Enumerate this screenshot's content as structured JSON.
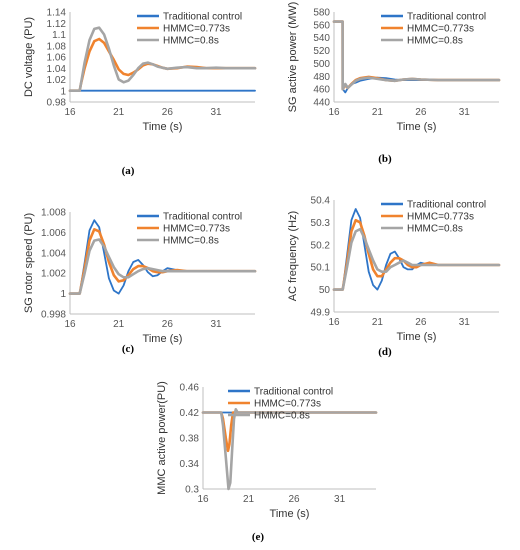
{
  "colors": {
    "blue": "#2E75C8",
    "orange": "#F0832E",
    "gray": "#A5A5A5"
  },
  "chart_data": [
    {
      "type": "line",
      "panel": "(a)",
      "xlabel": "Time (s)",
      "ylabel": "DC voltage (PU)",
      "xlim": [
        16,
        35
      ],
      "ylim": [
        0.98,
        1.14
      ],
      "xticks": [
        16,
        21,
        26,
        31
      ],
      "yticks": [
        0.98,
        1,
        1.02,
        1.04,
        1.06,
        1.08,
        1.1,
        1.12,
        1.14
      ],
      "yticklabels": [
        "0.98",
        "1",
        "1.02",
        "1.04",
        "1.06",
        "1.08",
        "1.1",
        "1.12",
        "1.14"
      ],
      "legend": "top-right",
      "series": [
        {
          "name": "Traditional control",
          "color": "blue",
          "x": [
            16,
            17,
            35
          ],
          "y": [
            1,
            1,
            1
          ]
        },
        {
          "name": "HMMC=0.773s",
          "color": "orange",
          "x": [
            16,
            17,
            17.1,
            17.5,
            18,
            18.5,
            19,
            19.5,
            20,
            20.5,
            21,
            21.5,
            22,
            22.5,
            23,
            23.5,
            24,
            24.5,
            25,
            25.5,
            26,
            27,
            28,
            29,
            30,
            31,
            32,
            33,
            34,
            35
          ],
          "y": [
            1,
            1,
            1.01,
            1.04,
            1.07,
            1.088,
            1.092,
            1.085,
            1.07,
            1.055,
            1.038,
            1.03,
            1.028,
            1.032,
            1.038,
            1.045,
            1.048,
            1.047,
            1.044,
            1.041,
            1.039,
            1.04,
            1.043,
            1.042,
            1.04,
            1.04,
            1.04,
            1.04,
            1.04,
            1.04
          ]
        },
        {
          "name": "HMMC=0.8s",
          "color": "gray",
          "x": [
            16,
            17,
            17.1,
            17.5,
            18,
            18.5,
            19,
            19.5,
            20,
            20.5,
            21,
            21.5,
            22,
            22.5,
            23,
            23.5,
            24,
            24.5,
            25,
            26,
            27,
            28,
            29,
            30,
            31,
            32,
            33,
            34,
            35
          ],
          "y": [
            1,
            1,
            1.01,
            1.05,
            1.09,
            1.11,
            1.112,
            1.1,
            1.075,
            1.045,
            1.02,
            1.015,
            1.018,
            1.028,
            1.04,
            1.048,
            1.05,
            1.047,
            1.043,
            1.039,
            1.041,
            1.042,
            1.04,
            1.04,
            1.041,
            1.04,
            1.04,
            1.04,
            1.04
          ]
        }
      ]
    },
    {
      "type": "line",
      "panel": "(b)",
      "xlabel": "Time (s)",
      "ylabel": "SG active power (MW)",
      "xlim": [
        16,
        35
      ],
      "ylim": [
        440,
        580
      ],
      "xticks": [
        16,
        21,
        26,
        31
      ],
      "yticks": [
        440,
        460,
        480,
        500,
        520,
        540,
        560,
        580
      ],
      "yticklabels": [
        "440",
        "460",
        "480",
        "500",
        "520",
        "540",
        "560",
        "580"
      ],
      "legend": "top-right",
      "series": [
        {
          "name": "Traditional control",
          "color": "blue",
          "x": [
            16,
            16.99,
            17,
            17.3,
            17.6,
            18,
            18.5,
            19,
            20,
            21,
            22,
            23,
            24,
            25,
            26,
            28,
            30,
            35
          ],
          "y": [
            565,
            565,
            460,
            455,
            462,
            468,
            470,
            473,
            476,
            478,
            477,
            475,
            474,
            474,
            474,
            474,
            474,
            474
          ]
        },
        {
          "name": "HMMC=0.773s",
          "color": "orange",
          "x": [
            16,
            16.99,
            17,
            17.3,
            17.6,
            18,
            18.5,
            19,
            20,
            21,
            22,
            23,
            24,
            25,
            26,
            28,
            30,
            35
          ],
          "y": [
            565,
            565,
            460,
            466,
            462,
            468,
            474,
            477,
            479,
            477,
            474,
            473,
            475,
            476,
            475,
            474,
            474,
            474
          ]
        },
        {
          "name": "HMMC=0.8s",
          "color": "gray",
          "x": [
            16,
            16.99,
            17,
            17.3,
            17.6,
            18,
            18.5,
            19,
            20,
            21,
            22,
            23,
            24,
            25,
            26,
            28,
            30,
            35
          ],
          "y": [
            565,
            565,
            460,
            468,
            462,
            467,
            473,
            476,
            478,
            476,
            474,
            473,
            475,
            476,
            475,
            474,
            474,
            474
          ]
        }
      ]
    },
    {
      "type": "line",
      "panel": "(c)",
      "xlabel": "Time (s)",
      "ylabel": "SG rotor speed (PU)",
      "xlim": [
        16,
        35
      ],
      "ylim": [
        0.998,
        1.008
      ],
      "xticks": [
        16,
        21,
        26,
        31
      ],
      "yticks": [
        0.998,
        1,
        1.002,
        1.004,
        1.006,
        1.008
      ],
      "yticklabels": [
        "0.998",
        "1",
        "1.002",
        "1.004",
        "1.006",
        "1.008"
      ],
      "legend": "top-right",
      "series": [
        {
          "name": "Traditional control",
          "color": "blue",
          "x": [
            16,
            17,
            17.5,
            18,
            18.5,
            19,
            19.5,
            20,
            20.5,
            21,
            21.5,
            22,
            22.5,
            23,
            23.5,
            24,
            24.5,
            25,
            25.5,
            26,
            27,
            28,
            29,
            30,
            35
          ],
          "y": [
            1,
            1,
            1.003,
            1.0062,
            1.0072,
            1.0065,
            1.004,
            1.0015,
            1.0003,
            1.0,
            1.0008,
            1.0022,
            1.0031,
            1.0033,
            1.0028,
            1.0021,
            1.0017,
            1.0018,
            1.0022,
            1.0025,
            1.0023,
            1.0022,
            1.0022,
            1.0022,
            1.0022
          ]
        },
        {
          "name": "HMMC=0.773s",
          "color": "orange",
          "x": [
            16,
            17,
            17.5,
            18,
            18.5,
            19,
            19.5,
            20,
            20.5,
            21,
            21.5,
            22,
            22.5,
            23,
            23.5,
            24,
            24.5,
            25,
            25.5,
            26,
            27,
            28,
            29,
            30,
            35
          ],
          "y": [
            1,
            1,
            1.0025,
            1.0052,
            1.0063,
            1.0061,
            1.0048,
            1.0031,
            1.0018,
            1.0012,
            1.0013,
            1.0018,
            1.0024,
            1.0027,
            1.0027,
            1.0025,
            1.0022,
            1.0021,
            1.0021,
            1.0022,
            1.0023,
            1.0022,
            1.0022,
            1.0022,
            1.0022
          ]
        },
        {
          "name": "HMMC=0.8s",
          "color": "gray",
          "x": [
            16,
            17,
            17.5,
            18,
            18.5,
            19,
            19.5,
            20,
            20.5,
            21,
            21.5,
            22,
            22.5,
            23,
            23.5,
            24,
            24.5,
            25,
            25.5,
            26,
            27,
            28,
            29,
            30,
            35
          ],
          "y": [
            1,
            1,
            1.002,
            1.0042,
            1.0052,
            1.0053,
            1.0046,
            1.0036,
            1.0026,
            1.0019,
            1.0016,
            1.0016,
            1.0019,
            1.0022,
            1.0024,
            1.0025,
            1.0024,
            1.0023,
            1.0022,
            1.0022,
            1.0022,
            1.0022,
            1.0022,
            1.0022,
            1.0022
          ]
        }
      ]
    },
    {
      "type": "line",
      "panel": "(d)",
      "xlabel": "Time (s)",
      "ylabel": "AC frequency (Hz)",
      "xlim": [
        16,
        35
      ],
      "ylim": [
        49.9,
        50.4
      ],
      "xticks": [
        16,
        21,
        26,
        31
      ],
      "yticks": [
        49.9,
        50,
        50.1,
        50.2,
        50.3,
        50.4
      ],
      "yticklabels": [
        "49.9",
        "50",
        "50.1",
        "50.2",
        "50.3",
        "50.4"
      ],
      "legend": "top-right",
      "series": [
        {
          "name": "Traditional control",
          "color": "blue",
          "x": [
            16,
            17,
            17.5,
            18,
            18.5,
            19,
            19.5,
            20,
            20.5,
            21,
            21.5,
            22,
            22.5,
            23,
            23.5,
            24,
            24.5,
            25,
            25.5,
            26,
            27,
            28,
            29,
            30,
            35
          ],
          "y": [
            50,
            50,
            50.15,
            50.31,
            50.36,
            50.32,
            50.2,
            50.08,
            50.02,
            50.0,
            50.04,
            50.11,
            50.16,
            50.17,
            50.14,
            50.1,
            50.09,
            50.09,
            50.11,
            50.12,
            50.11,
            50.11,
            50.11,
            50.11,
            50.11
          ]
        },
        {
          "name": "HMMC=0.773s",
          "color": "orange",
          "x": [
            16,
            17,
            17.5,
            18,
            18.5,
            19,
            19.5,
            20,
            20.5,
            21,
            21.5,
            22,
            22.5,
            23,
            23.5,
            24,
            24.5,
            25,
            25.5,
            26,
            27,
            28,
            29,
            30,
            35
          ],
          "y": [
            50,
            50,
            50.12,
            50.26,
            50.31,
            50.3,
            50.24,
            50.16,
            50.09,
            50.06,
            50.06,
            50.09,
            50.12,
            50.14,
            50.14,
            50.13,
            50.11,
            50.1,
            50.1,
            50.11,
            50.12,
            50.11,
            50.11,
            50.11,
            50.11
          ]
        },
        {
          "name": "HMMC=0.8s",
          "color": "gray",
          "x": [
            16,
            17,
            17.5,
            18,
            18.5,
            19,
            19.5,
            20,
            20.5,
            21,
            21.5,
            22,
            22.5,
            23,
            23.5,
            24,
            24.5,
            25,
            25.5,
            26,
            27,
            28,
            29,
            30,
            35
          ],
          "y": [
            50,
            50,
            50.1,
            50.21,
            50.26,
            50.27,
            50.23,
            50.18,
            50.13,
            50.09,
            50.08,
            50.08,
            50.1,
            50.11,
            50.12,
            50.13,
            50.12,
            50.11,
            50.11,
            50.11,
            50.11,
            50.11,
            50.11,
            50.11,
            50.11
          ]
        }
      ]
    },
    {
      "type": "line",
      "panel": "(e)",
      "xlabel": "Time (s)",
      "ylabel": "MMC active power(PU)",
      "xlim": [
        16,
        35
      ],
      "ylim": [
        0.3,
        0.46
      ],
      "xticks": [
        16,
        21,
        26,
        31
      ],
      "yticks": [
        0.3,
        0.34,
        0.38,
        0.42,
        0.46
      ],
      "yticklabels": [
        "0.3",
        "0.34",
        "0.38",
        "0.42",
        "0.46"
      ],
      "legend": "top-right",
      "series": [
        {
          "name": "Traditional control",
          "color": "blue",
          "x": [
            16,
            35
          ],
          "y": [
            0.42,
            0.42
          ]
        },
        {
          "name": "HMMC=0.773s",
          "color": "orange",
          "x": [
            16,
            18,
            18.2,
            18.5,
            18.75,
            18.9,
            19.1,
            19.3,
            35
          ],
          "y": [
            0.42,
            0.42,
            0.41,
            0.38,
            0.36,
            0.37,
            0.4,
            0.42,
            0.42
          ]
        },
        {
          "name": "HMMC=0.8s",
          "color": "gray",
          "x": [
            16,
            18,
            18.2,
            18.5,
            18.8,
            19.0,
            19.2,
            19.4,
            19.6,
            19.8,
            35
          ],
          "y": [
            0.42,
            0.42,
            0.4,
            0.35,
            0.3,
            0.31,
            0.36,
            0.41,
            0.425,
            0.42,
            0.42
          ]
        }
      ]
    }
  ],
  "captions": [
    "(a)",
    "(b)",
    "(c)",
    "(d)",
    "(e)"
  ]
}
